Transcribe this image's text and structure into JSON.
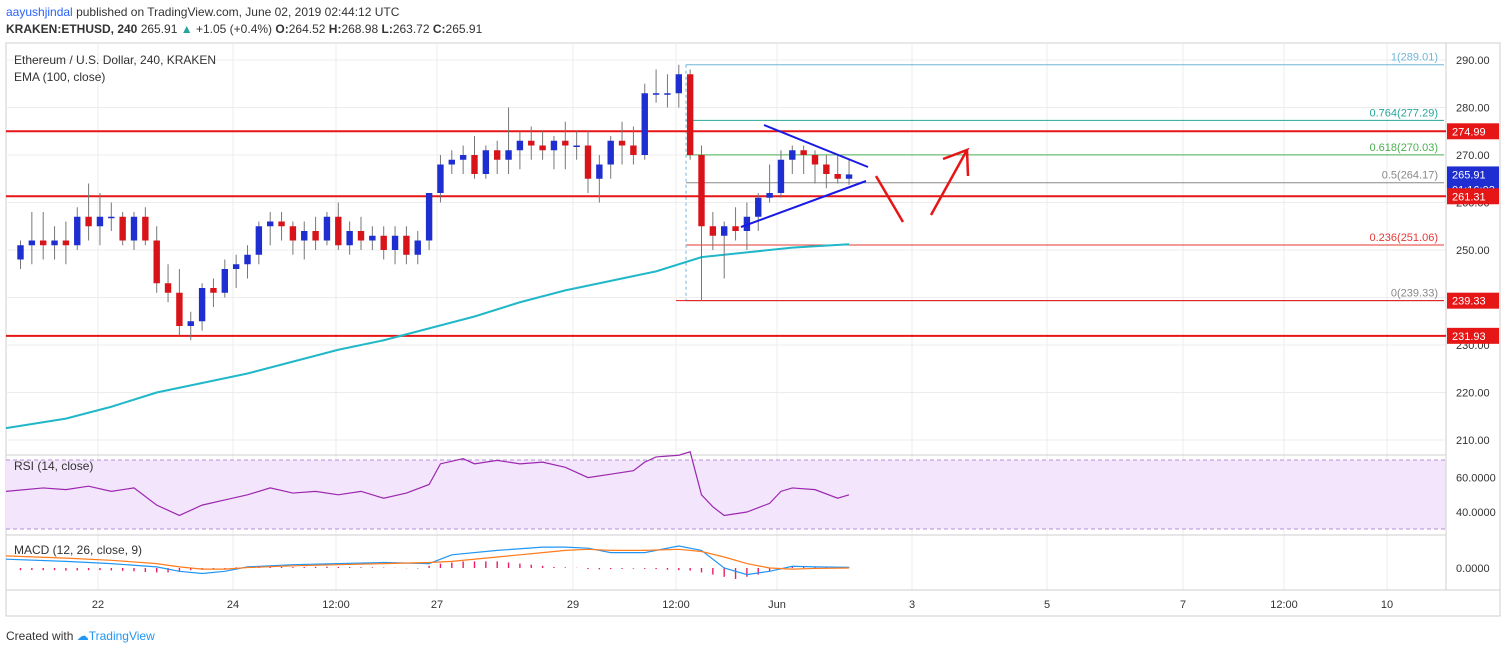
{
  "header": {
    "author": "aayushjindal",
    "published": "published on TradingView.com, June 02, 2019 02:44:12 UTC",
    "symbol": "KRAKEN:ETHUSD, 240",
    "last": "265.91",
    "change_arrow": "▲",
    "change": "+1.05 (+0.4%)",
    "o_label": "O:",
    "o": "264.52",
    "h_label": "H:",
    "h": "268.98",
    "l_label": "L:",
    "l": "263.72",
    "c_label": "C:",
    "c": "265.91"
  },
  "legend": {
    "title": "Ethereum / U.S. Dollar, 240, KRAKEN",
    "ema": "EMA (100, close)",
    "rsi": "RSI (14, close)",
    "macd": "MACD (12, 26, close, 9)"
  },
  "footer": {
    "created_with": "Created with",
    "brand": "TradingView"
  },
  "colors": {
    "bull": "#1e2ed0",
    "bear": "#d8131a",
    "ema": "#20b8c8",
    "resistance": "#e61616",
    "trend": "#1a1ae6",
    "rsi": "#9c27b0",
    "rsi_band": "#f3e5fb",
    "macd": "#2196f3",
    "signal": "#ff7b1c",
    "hist": "#e91e63",
    "grid": "#ececec",
    "fib": "#6fb5d8",
    "axis_text": "#333333"
  },
  "chart_data": {
    "type": "candlestick",
    "x_tick_labels": [
      "22",
      "24",
      "12:00",
      "27",
      "29",
      "12:00",
      "Jun",
      "3",
      "5",
      "7",
      "12:00",
      "10"
    ],
    "price_axis": {
      "ylim": [
        207,
        293
      ],
      "ticks": [
        210,
        220,
        230,
        240,
        250,
        260,
        270,
        280,
        290
      ]
    },
    "rsi_axis": {
      "ticks": [
        "40.0000",
        "60.0000"
      ],
      "band": [
        30,
        70
      ]
    },
    "macd_axis": {
      "ticks": [
        "0.0000"
      ]
    },
    "price_labels": [
      {
        "value": 274.99,
        "text": "274.99",
        "color": "#e61616"
      },
      {
        "value": 265.91,
        "text": "265.91",
        "color": "#1e2ed0"
      },
      {
        "value": 263.5,
        "text": "01:16:03",
        "color": "#1e2ed0"
      },
      {
        "value": 261.31,
        "text": "261.31",
        "color": "#e61616"
      },
      {
        "value": 239.33,
        "text": "239.33",
        "color": "#e61616"
      },
      {
        "value": 231.93,
        "text": "231.93",
        "color": "#e61616"
      }
    ],
    "resistance_lines": [
      274.99,
      261.31,
      231.93
    ],
    "fib_levels": [
      {
        "ratio": "1",
        "value": 289.01,
        "label": "1(289.01)",
        "color": "#6fb5d8"
      },
      {
        "ratio": "0.764",
        "value": 277.29,
        "label": "0.764(277.29)",
        "color": "#26a69a"
      },
      {
        "ratio": "0.618",
        "value": 270.03,
        "label": "0.618(270.03)",
        "color": "#4caf50"
      },
      {
        "ratio": "0.5",
        "value": 264.17,
        "label": "0.5(264.17)",
        "color": "#888888"
      },
      {
        "ratio": "0.236",
        "value": 251.06,
        "label": "0.236(251.06)",
        "color": "#e53935"
      },
      {
        "ratio": "0",
        "value": 239.33,
        "label": "0(239.33)",
        "color": "#888888"
      }
    ],
    "candles": [
      [
        248.0,
        252.0,
        246.0,
        251.0
      ],
      [
        251.0,
        258.0,
        247.0,
        252.0
      ],
      [
        252.0,
        258.0,
        248.0,
        251.0
      ],
      [
        251.0,
        255.0,
        248.0,
        252.0
      ],
      [
        252.0,
        256.0,
        247.0,
        251.0
      ],
      [
        251.0,
        259.0,
        250.0,
        257.0
      ],
      [
        257.0,
        264.0,
        252.0,
        255.0
      ],
      [
        255.0,
        262.0,
        251.0,
        257.0
      ],
      [
        257.0,
        260.0,
        254.0,
        257.0
      ],
      [
        257.0,
        258.0,
        251.0,
        252.0
      ],
      [
        252.0,
        258.0,
        250.0,
        257.0
      ],
      [
        257.0,
        259.0,
        251.0,
        252.0
      ],
      [
        252.0,
        255.0,
        241.0,
        243.0
      ],
      [
        243.0,
        247.0,
        239.0,
        241.0
      ],
      [
        241.0,
        246.0,
        232.0,
        234.0
      ],
      [
        234.0,
        237.0,
        231.0,
        235.0
      ],
      [
        235.0,
        243.0,
        233.0,
        242.0
      ],
      [
        242.0,
        244.0,
        238.0,
        241.0
      ],
      [
        241.0,
        248.0,
        240.0,
        246.0
      ],
      [
        246.0,
        249.0,
        242.0,
        247.0
      ],
      [
        247.0,
        251.0,
        244.0,
        249.0
      ],
      [
        249.0,
        256.0,
        247.0,
        255.0
      ],
      [
        255.0,
        258.0,
        251.0,
        256.0
      ],
      [
        256.0,
        258.0,
        252.0,
        255.0
      ],
      [
        255.0,
        256.0,
        249.0,
        252.0
      ],
      [
        252.0,
        256.0,
        248.0,
        254.0
      ],
      [
        254.0,
        257.0,
        250.0,
        252.0
      ],
      [
        252.0,
        258.0,
        251.0,
        257.0
      ],
      [
        257.0,
        260.0,
        250.0,
        251.0
      ],
      [
        251.0,
        256.0,
        249.0,
        254.0
      ],
      [
        254.0,
        257.0,
        250.0,
        252.0
      ],
      [
        252.0,
        255.0,
        250.0,
        253.0
      ],
      [
        253.0,
        255.0,
        248.0,
        250.0
      ],
      [
        250.0,
        255.0,
        247.0,
        253.0
      ],
      [
        253.0,
        255.0,
        247.0,
        249.0
      ],
      [
        249.0,
        254.0,
        247.0,
        252.0
      ],
      [
        252.0,
        262.0,
        250.0,
        262.0
      ],
      [
        262.0,
        270.0,
        260.0,
        268.0
      ],
      [
        268.0,
        271.0,
        266.0,
        269.0
      ],
      [
        269.0,
        272.0,
        266.0,
        270.0
      ],
      [
        270.0,
        274.0,
        265.0,
        266.0
      ],
      [
        266.0,
        272.0,
        265.0,
        271.0
      ],
      [
        271.0,
        273.0,
        266.0,
        269.0
      ],
      [
        269.0,
        280.0,
        266.0,
        271.0
      ],
      [
        271.0,
        275.0,
        267.0,
        273.0
      ],
      [
        273.0,
        276.0,
        269.0,
        272.0
      ],
      [
        272.0,
        275.0,
        269.0,
        271.0
      ],
      [
        271.0,
        274.0,
        267.0,
        273.0
      ],
      [
        273.0,
        277.0,
        267.0,
        272.0
      ],
      [
        272.0,
        275.0,
        269.0,
        272.0
      ],
      [
        272.0,
        275.0,
        262.0,
        265.0
      ],
      [
        265.0,
        270.0,
        260.0,
        268.0
      ],
      [
        268.0,
        274.0,
        265.0,
        273.0
      ],
      [
        273.0,
        277.0,
        268.0,
        272.0
      ],
      [
        272.0,
        276.0,
        268.0,
        270.0
      ],
      [
        270.0,
        285.0,
        269.0,
        283.0
      ],
      [
        283.0,
        288.0,
        281.0,
        283.0
      ],
      [
        283.0,
        287.0,
        280.0,
        283.0
      ],
      [
        283.0,
        289.0,
        280.0,
        287.0
      ],
      [
        287.0,
        288.0,
        269.0,
        270.0
      ],
      [
        270.0,
        272.0,
        239.3,
        255.0
      ],
      [
        255.0,
        258.0,
        250.0,
        253.0
      ],
      [
        253.0,
        256.0,
        244.0,
        255.0
      ],
      [
        255.0,
        259.0,
        252.0,
        254.0
      ],
      [
        254.0,
        260.0,
        250.0,
        257.0
      ],
      [
        257.0,
        262.0,
        254.0,
        261.0
      ],
      [
        261.0,
        268.0,
        260.0,
        262.0
      ],
      [
        262.0,
        271.0,
        261.0,
        269.0
      ],
      [
        269.0,
        272.0,
        266.0,
        271.0
      ],
      [
        271.0,
        272.0,
        266.0,
        270.0
      ],
      [
        270.0,
        271.0,
        264.0,
        268.0
      ],
      [
        268.0,
        270.0,
        263.0,
        266.0
      ],
      [
        266.0,
        270.0,
        264.0,
        265.0
      ],
      [
        265.0,
        268.98,
        263.72,
        265.91
      ]
    ],
    "ema": [
      [
        0,
        212.5
      ],
      [
        4,
        214.5
      ],
      [
        8,
        217.0
      ],
      [
        12,
        220.0
      ],
      [
        16,
        222.0
      ],
      [
        20,
        224.0
      ],
      [
        24,
        226.5
      ],
      [
        28,
        229.0
      ],
      [
        32,
        231.0
      ],
      [
        36,
        233.5
      ],
      [
        40,
        236.0
      ],
      [
        44,
        239.0
      ],
      [
        48,
        241.5
      ],
      [
        52,
        243.5
      ],
      [
        56,
        245.5
      ],
      [
        60,
        248.5
      ],
      [
        64,
        249.5
      ],
      [
        68,
        250.5
      ],
      [
        73,
        251.2
      ]
    ],
    "rsi": [
      [
        0,
        52
      ],
      [
        2,
        54
      ],
      [
        4,
        53
      ],
      [
        6,
        55
      ],
      [
        8,
        52
      ],
      [
        10,
        54
      ],
      [
        12,
        44
      ],
      [
        14,
        38
      ],
      [
        16,
        44
      ],
      [
        18,
        47
      ],
      [
        20,
        50
      ],
      [
        22,
        54
      ],
      [
        24,
        51
      ],
      [
        26,
        52
      ],
      [
        28,
        50
      ],
      [
        30,
        52
      ],
      [
        32,
        48
      ],
      [
        34,
        51
      ],
      [
        36,
        56
      ],
      [
        37,
        68
      ],
      [
        39,
        71
      ],
      [
        40,
        68
      ],
      [
        42,
        70
      ],
      [
        44,
        68
      ],
      [
        46,
        69
      ],
      [
        48,
        66
      ],
      [
        50,
        60
      ],
      [
        52,
        62
      ],
      [
        54,
        64
      ],
      [
        55,
        69
      ],
      [
        56,
        72
      ],
      [
        58,
        73
      ],
      [
        59,
        75
      ],
      [
        60,
        50
      ],
      [
        61,
        43
      ],
      [
        62,
        38
      ],
      [
        64,
        40
      ],
      [
        66,
        45
      ],
      [
        67,
        52
      ],
      [
        68,
        54
      ],
      [
        70,
        53
      ],
      [
        72,
        48
      ],
      [
        73,
        50
      ]
    ],
    "macd": [
      [
        0,
        4
      ],
      [
        4,
        3
      ],
      [
        8,
        2
      ],
      [
        12,
        0.5
      ],
      [
        14,
        -1.5
      ],
      [
        16,
        -2.5
      ],
      [
        18,
        -1.5
      ],
      [
        20,
        0.5
      ],
      [
        24,
        1.5
      ],
      [
        28,
        2
      ],
      [
        32,
        2.5
      ],
      [
        36,
        2
      ],
      [
        38,
        6
      ],
      [
        42,
        8
      ],
      [
        46,
        9.5
      ],
      [
        48,
        9.5
      ],
      [
        50,
        9
      ],
      [
        52,
        7
      ],
      [
        55,
        7
      ],
      [
        58,
        10
      ],
      [
        60,
        8
      ],
      [
        62,
        0
      ],
      [
        64,
        -3
      ],
      [
        66,
        -1.5
      ],
      [
        68,
        0.8
      ],
      [
        70,
        0.5
      ],
      [
        73,
        0.3
      ]
    ],
    "signal": [
      [
        0,
        5.5
      ],
      [
        4,
        4.5
      ],
      [
        8,
        3.5
      ],
      [
        12,
        2
      ],
      [
        14,
        0.5
      ],
      [
        16,
        -0.5
      ],
      [
        18,
        -0.5
      ],
      [
        20,
        0.2
      ],
      [
        24,
        1
      ],
      [
        28,
        1.5
      ],
      [
        32,
        2
      ],
      [
        36,
        2.5
      ],
      [
        38,
        3
      ],
      [
        42,
        5
      ],
      [
        46,
        7
      ],
      [
        48,
        8
      ],
      [
        50,
        8.5
      ],
      [
        52,
        8
      ],
      [
        55,
        8
      ],
      [
        58,
        8.5
      ],
      [
        60,
        7.5
      ],
      [
        62,
        5
      ],
      [
        64,
        2
      ],
      [
        66,
        0
      ],
      [
        68,
        -0.5
      ],
      [
        70,
        -0.2
      ],
      [
        73,
        0
      ]
    ],
    "macd_hist": [
      -1,
      -0.9,
      -1,
      -1,
      -1.2,
      -1.1,
      -1,
      -1,
      -1.1,
      -1.3,
      -1.5,
      -1.8,
      -2,
      -2,
      -1.5,
      -1,
      -0.8,
      -0.5,
      -0.3,
      0.3,
      0.4,
      0.5,
      0.5,
      0.5,
      0.4,
      0.4,
      0.5,
      0.6,
      0.5,
      0.4,
      0.3,
      0.3,
      0.2,
      0.1,
      -0.1,
      -0.2,
      1,
      2,
      2.5,
      3,
      3,
      3,
      3,
      2.5,
      2,
      1.5,
      1,
      0.5,
      0.3,
      0.1,
      -0.5,
      -0.6,
      -0.5,
      -0.4,
      -0.3,
      -0.4,
      -0.5,
      -0.8,
      -1,
      -1.2,
      -2,
      -3,
      -4,
      -5,
      -4,
      -3,
      -1.5,
      -0.5,
      0.5,
      0.6,
      0.4,
      0.3,
      0.2,
      0.2
    ]
  }
}
